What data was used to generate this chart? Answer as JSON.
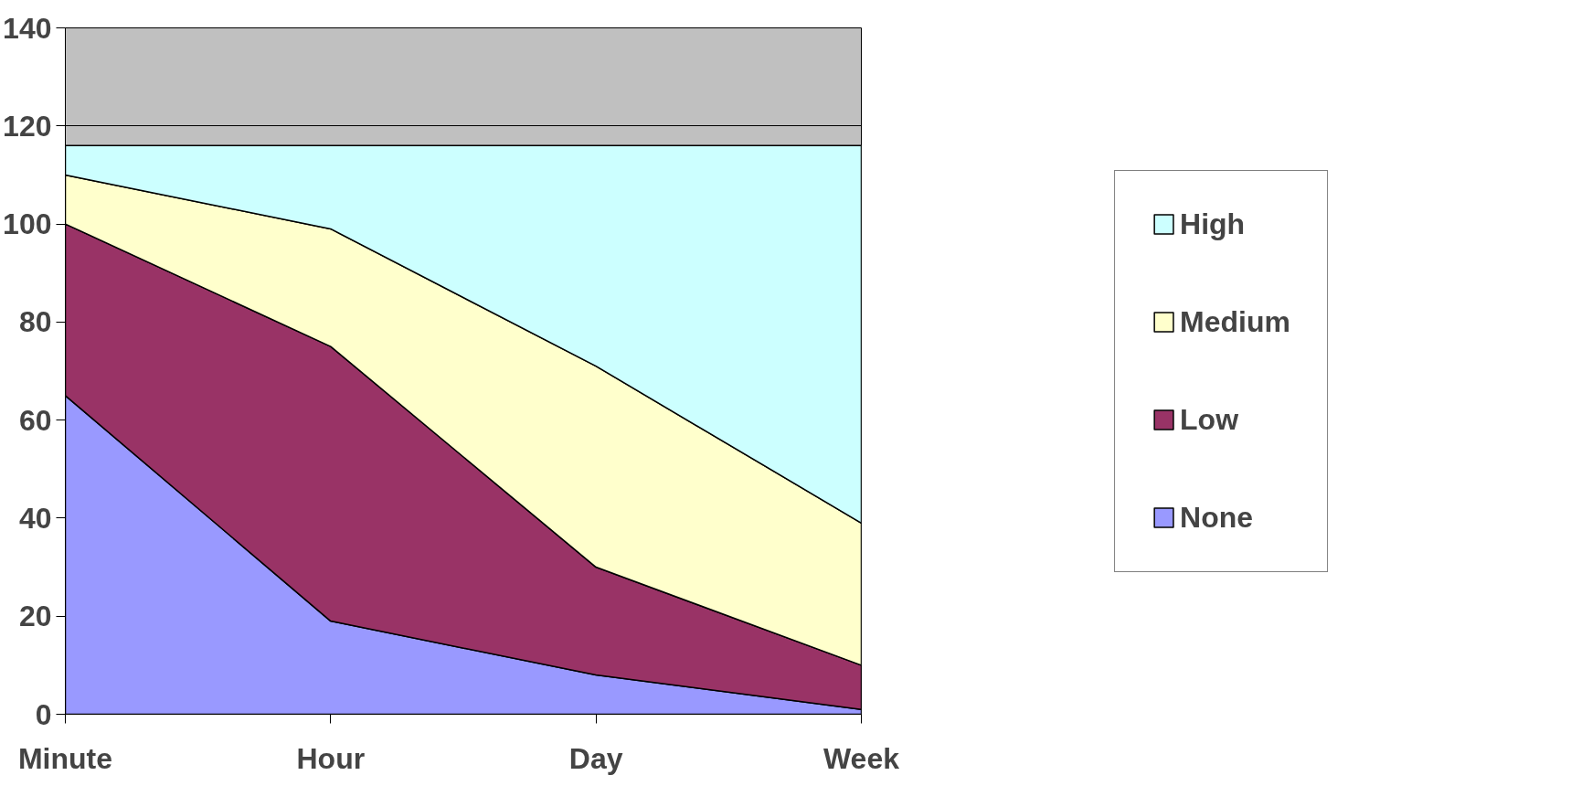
{
  "chart_data": {
    "type": "area",
    "stacked": true,
    "categories": [
      "Minute",
      "Hour",
      "Day",
      "Week"
    ],
    "series": [
      {
        "name": "None",
        "color": "#9999ff",
        "values": [
          65,
          19,
          8,
          1
        ]
      },
      {
        "name": "Low",
        "color": "#993366",
        "values": [
          35,
          56,
          22,
          9
        ]
      },
      {
        "name": "Medium",
        "color": "#ffffcc",
        "values": [
          10,
          24,
          41,
          29
        ]
      },
      {
        "name": "High",
        "color": "#ccffff",
        "values": [
          6,
          17,
          45,
          77
        ]
      }
    ],
    "ylim": [
      0,
      140
    ],
    "yticks": [
      0,
      20,
      40,
      60,
      80,
      100,
      120,
      140
    ],
    "grid": "y",
    "legend": "right"
  }
}
